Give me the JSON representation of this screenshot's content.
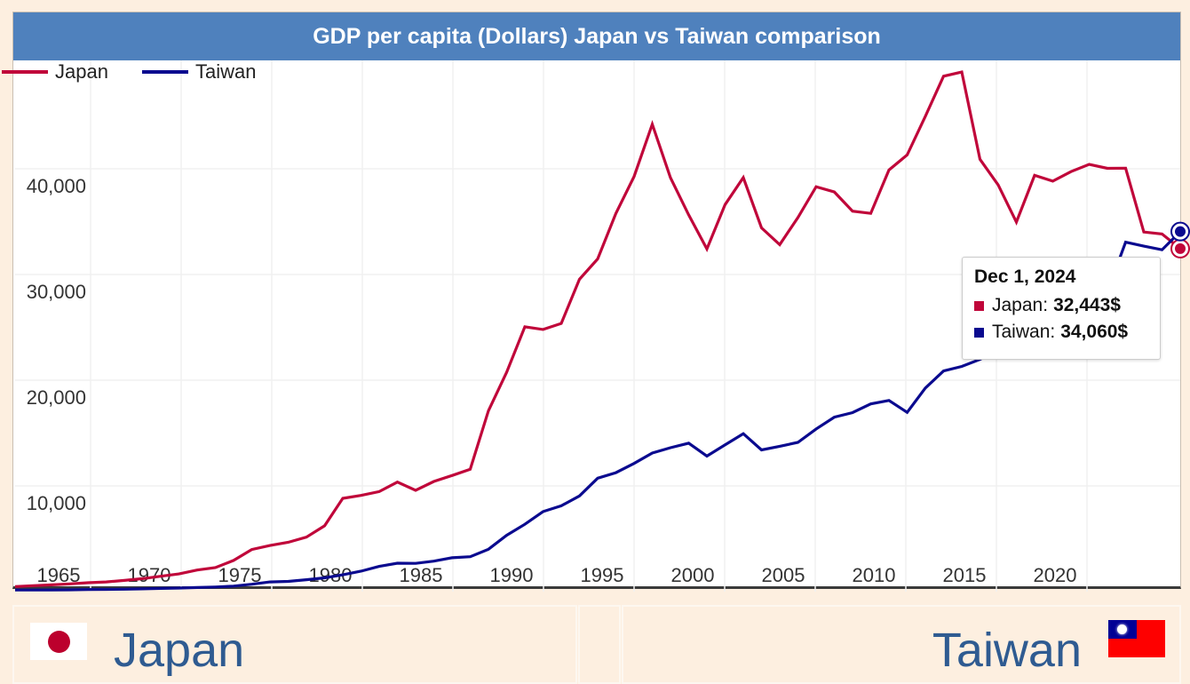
{
  "title": "GDP per capita (Dollars) Japan vs Taiwan comparison",
  "legend": [
    {
      "name": "Japan",
      "color": "#c0063a"
    },
    {
      "name": "Taiwan",
      "color": "#0a0a8f"
    }
  ],
  "tooltip": {
    "date": "Dec 1, 2024",
    "rows": [
      {
        "label": "Japan:",
        "value": "32,443$",
        "color": "#c0063a"
      },
      {
        "label": "Taiwan:",
        "value": "34,060$",
        "color": "#0a0a8f"
      }
    ]
  },
  "cards": {
    "left": {
      "name": "Japan",
      "flag": "japan-flag"
    },
    "right": {
      "name": "Taiwan",
      "flag": "taiwan-flag"
    }
  },
  "chart_data": {
    "type": "line",
    "title": "GDP per capita (Dollars) Japan vs Taiwan comparison",
    "xlabel": "",
    "ylabel": "",
    "xlim": [
      1960,
      2024
    ],
    "ylim": [
      0,
      49000
    ],
    "grid": true,
    "legend_position": "top-left",
    "x_ticks": [
      1965,
      1970,
      1975,
      1980,
      1985,
      1990,
      1995,
      2000,
      2005,
      2010,
      2015,
      2020
    ],
    "y_ticks": [
      10000,
      20000,
      30000,
      40000
    ],
    "y_tick_labels": [
      "10,000",
      "20,000",
      "30,000",
      "40,000"
    ],
    "x": [
      1960,
      1961,
      1962,
      1963,
      1964,
      1965,
      1966,
      1967,
      1968,
      1969,
      1970,
      1971,
      1972,
      1973,
      1974,
      1975,
      1976,
      1977,
      1978,
      1979,
      1980,
      1981,
      1982,
      1983,
      1984,
      1985,
      1986,
      1987,
      1988,
      1989,
      1990,
      1991,
      1992,
      1993,
      1994,
      1995,
      1996,
      1997,
      1998,
      1999,
      2000,
      2001,
      2002,
      2003,
      2004,
      2005,
      2006,
      2007,
      2008,
      2009,
      2010,
      2011,
      2012,
      2013,
      2014,
      2015,
      2016,
      2017,
      2018,
      2019,
      2020,
      2021,
      2022,
      2023,
      2024
    ],
    "series": [
      {
        "name": "Japan",
        "color": "#c0063a",
        "values": [
          480,
          560,
          640,
          730,
          840,
          920,
          1060,
          1230,
          1450,
          1670,
          2040,
          2270,
          2950,
          3980,
          4360,
          4660,
          5150,
          6230,
          8820,
          9100,
          9460,
          10360,
          9580,
          10420,
          10980,
          11580,
          17110,
          20750,
          25050,
          24800,
          25370,
          29550,
          31470,
          35770,
          39270,
          44210,
          39150,
          35640,
          32420,
          36610,
          39170,
          34410,
          32820,
          35390,
          38300,
          37810,
          35990,
          35780,
          39880,
          41310,
          44970,
          48760,
          49150,
          40900,
          38470,
          34960,
          39380,
          38830,
          39730,
          40420,
          40040,
          40060,
          34020,
          33830,
          32443
        ]
      },
      {
        "name": "Taiwan",
        "color": "#0a0a8f",
        "values": [
          150,
          150,
          160,
          170,
          200,
          210,
          230,
          260,
          300,
          340,
          390,
          440,
          520,
          700,
          920,
          970,
          1130,
          1300,
          1590,
          1930,
          2390,
          2690,
          2670,
          2880,
          3200,
          3300,
          4010,
          5330,
          6370,
          7570,
          8120,
          9050,
          10730,
          11250,
          12130,
          13110,
          13610,
          14040,
          12820,
          13880,
          14940,
          13400,
          13750,
          14120,
          15390,
          16500,
          16930,
          17760,
          18080,
          16960,
          19260,
          20870,
          21300,
          21970,
          22870,
          22780,
          23090,
          25080,
          25830,
          25910,
          28380,
          33060,
          32680,
          32340,
          34060
        ]
      }
    ],
    "hover": {
      "x": 2024,
      "Japan": 32443,
      "Taiwan": 34060
    }
  }
}
